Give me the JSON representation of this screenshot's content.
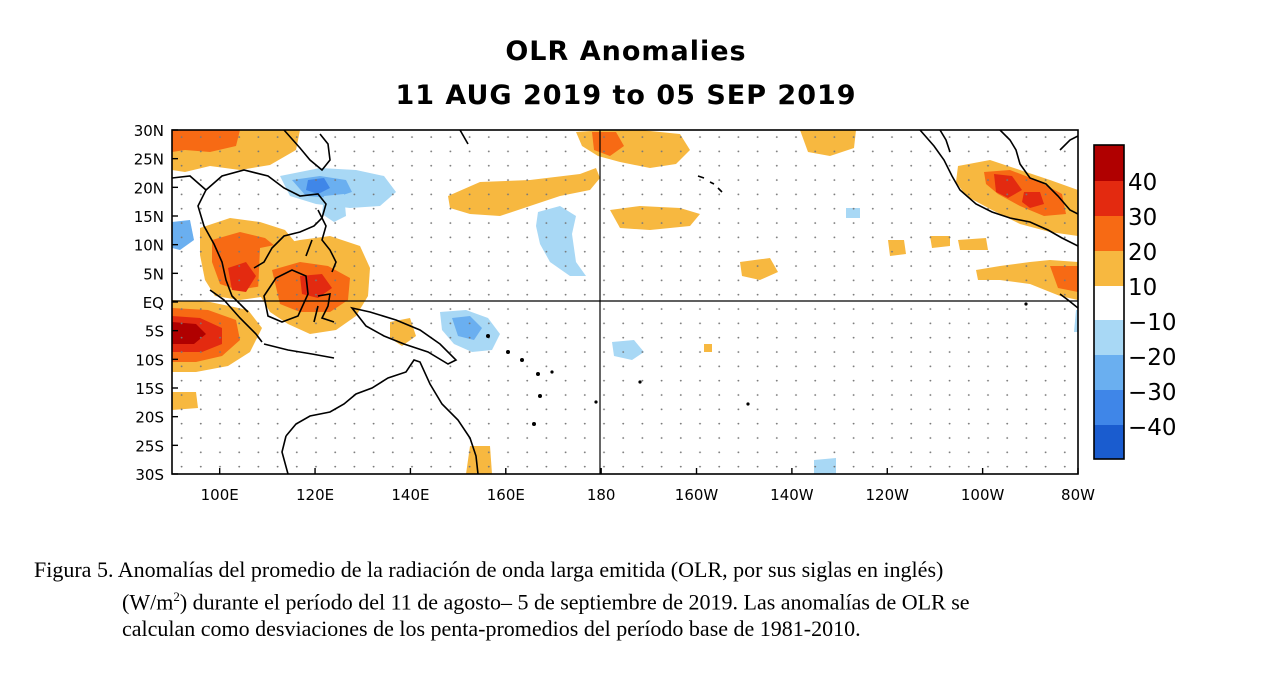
{
  "title": {
    "line1": "OLR Anomalies",
    "line2": "11 AUG 2019 to 05 SEP 2019"
  },
  "map": {
    "lat_labels": [
      "30N",
      "25N",
      "20N",
      "15N",
      "10N",
      "5N",
      "EQ",
      "5S",
      "10S",
      "15S",
      "20S",
      "25S",
      "30S"
    ],
    "lon_labels": [
      "100E",
      "120E",
      "140E",
      "160E",
      "180",
      "160W",
      "140W",
      "120W",
      "100W",
      "80W"
    ],
    "lon_range": [
      "90E",
      "80W"
    ],
    "lat_range": [
      "30S",
      "30N"
    ],
    "colors": {
      "pos40": "#b00000",
      "pos30": "#e32a10",
      "pos20": "#f76a14",
      "pos10": "#f7b840",
      "neutral": "#ffffff",
      "neg10": "#a8d8f5",
      "neg20": "#6aaff0",
      "neg30": "#3f86e8",
      "neg40": "#1a5ccf"
    }
  },
  "colorbar": {
    "labels": [
      "40",
      "30",
      "20",
      "10",
      "−10",
      "−20",
      "−30",
      "−40"
    ]
  },
  "caption": {
    "line1": "Figura 5. Anomalías del promedio de la radiación de onda larga emitida (OLR, por sus siglas en inglés)",
    "line2a": "(W/m",
    "line2sup": "2",
    "line2b": ") durante el período del 11 de agosto– 5 de septiembre de 2019.  Las anomalías de OLR se",
    "line3": "calculan como desviaciones de los penta-promedios del período base de 1981-2010."
  }
}
